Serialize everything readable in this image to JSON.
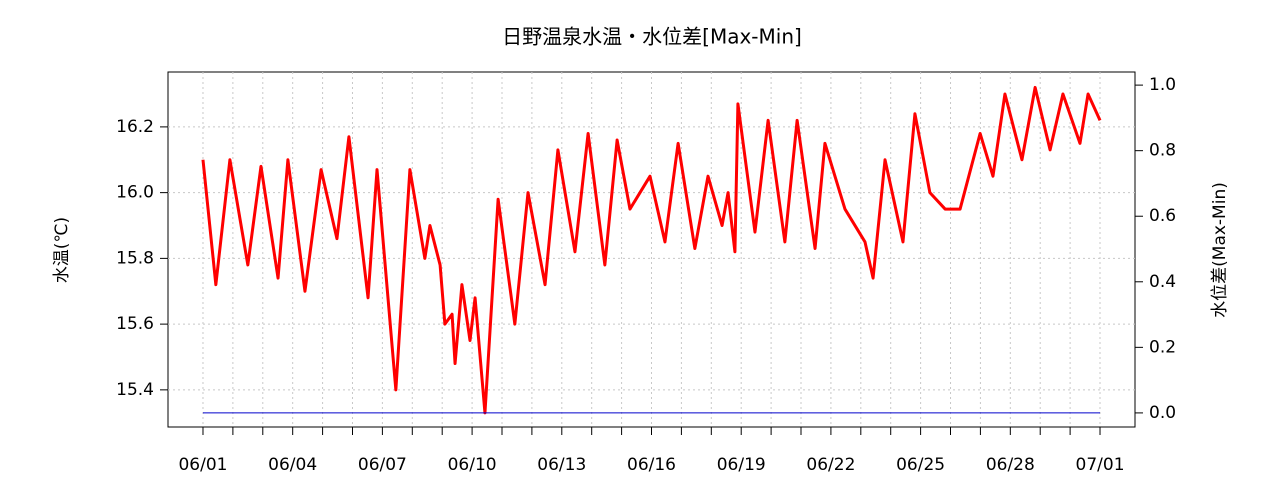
{
  "chart_data": {
    "type": "line",
    "title": "日野温泉水温・水位差[Max-Min]",
    "ylabel": "水温(℃)",
    "y2label": "水位差(Max-Min)",
    "xlim": [
      -1.17,
      31.17
    ],
    "xticks": [
      {
        "value": 0,
        "label": "06/01"
      },
      {
        "value": 3,
        "label": "06/04"
      },
      {
        "value": 6,
        "label": "06/07"
      },
      {
        "value": 9,
        "label": "06/10"
      },
      {
        "value": 12,
        "label": "06/13"
      },
      {
        "value": 15,
        "label": "06/16"
      },
      {
        "value": 18,
        "label": "06/19"
      },
      {
        "value": 21,
        "label": "06/22"
      },
      {
        "value": 24,
        "label": "06/25"
      },
      {
        "value": 27,
        "label": "06/28"
      },
      {
        "value": 30,
        "label": "07/01"
      }
    ],
    "xminorticks": [
      1,
      2,
      4,
      5,
      7,
      8,
      10,
      11,
      13,
      14,
      16,
      17,
      19,
      20,
      22,
      23,
      25,
      26,
      28,
      29
    ],
    "ylim": [
      15.287,
      16.367
    ],
    "yticks": [
      15.4,
      15.6,
      15.8,
      {
        "value": 16,
        "label": "16.0"
      },
      16.2
    ],
    "y2lim": [
      -0.043,
      1.04
    ],
    "y2ticks": [
      {
        "value": 0,
        "label": "0.0"
      },
      0.2,
      0.4,
      0.6,
      0.8,
      {
        "value": 1,
        "label": "1.0"
      }
    ],
    "grid": true,
    "series": [
      {
        "name": "水温",
        "color": "#ff0000",
        "axis": "y",
        "x": [
          0,
          0.43,
          0.9,
          1.5,
          1.94,
          2.51,
          2.84,
          3.41,
          3.95,
          4.48,
          4.88,
          5.52,
          5.82,
          6.45,
          6.92,
          7.42,
          7.59,
          7.93,
          8.09,
          8.33,
          8.43,
          8.66,
          8.93,
          9.1,
          9.43,
          9.87,
          10.43,
          10.87,
          11.44,
          11.87,
          12.44,
          12.88,
          13.44,
          13.85,
          14.28,
          14.95,
          15.45,
          15.89,
          16.45,
          16.89,
          17.36,
          17.56,
          17.79,
          17.89,
          18.46,
          18.9,
          19.46,
          19.87,
          20.47,
          20.8,
          21.47,
          22.14,
          22.41,
          22.81,
          23.41,
          23.81,
          24.31,
          24.82,
          25.32,
          25.99,
          26.42,
          26.82,
          27.39,
          27.83,
          28.33,
          28.76,
          29.33,
          29.6,
          30
        ],
        "values": [
          16.1,
          15.72,
          16.1,
          15.78,
          16.08,
          15.74,
          16.1,
          15.7,
          16.07,
          15.86,
          16.17,
          15.68,
          16.07,
          15.4,
          16.07,
          15.8,
          15.9,
          15.78,
          15.6,
          15.63,
          15.48,
          15.72,
          15.55,
          15.68,
          15.33,
          15.98,
          15.6,
          16.0,
          15.72,
          16.13,
          15.82,
          16.18,
          15.78,
          16.16,
          15.95,
          16.05,
          15.85,
          16.15,
          15.83,
          16.05,
          15.9,
          16.0,
          15.82,
          16.27,
          15.88,
          16.22,
          15.85,
          16.22,
          15.83,
          16.15,
          15.95,
          15.85,
          15.74,
          16.1,
          15.85,
          16.24,
          16.0,
          15.95,
          15.95,
          16.18,
          16.05,
          16.3,
          16.1,
          16.32,
          16.13,
          16.3,
          16.15,
          16.3,
          16.22
        ]
      },
      {
        "name": "水位差",
        "color": "#0000cc",
        "axis": "y2",
        "x": [
          0,
          30
        ],
        "values": [
          0,
          0
        ]
      }
    ]
  }
}
